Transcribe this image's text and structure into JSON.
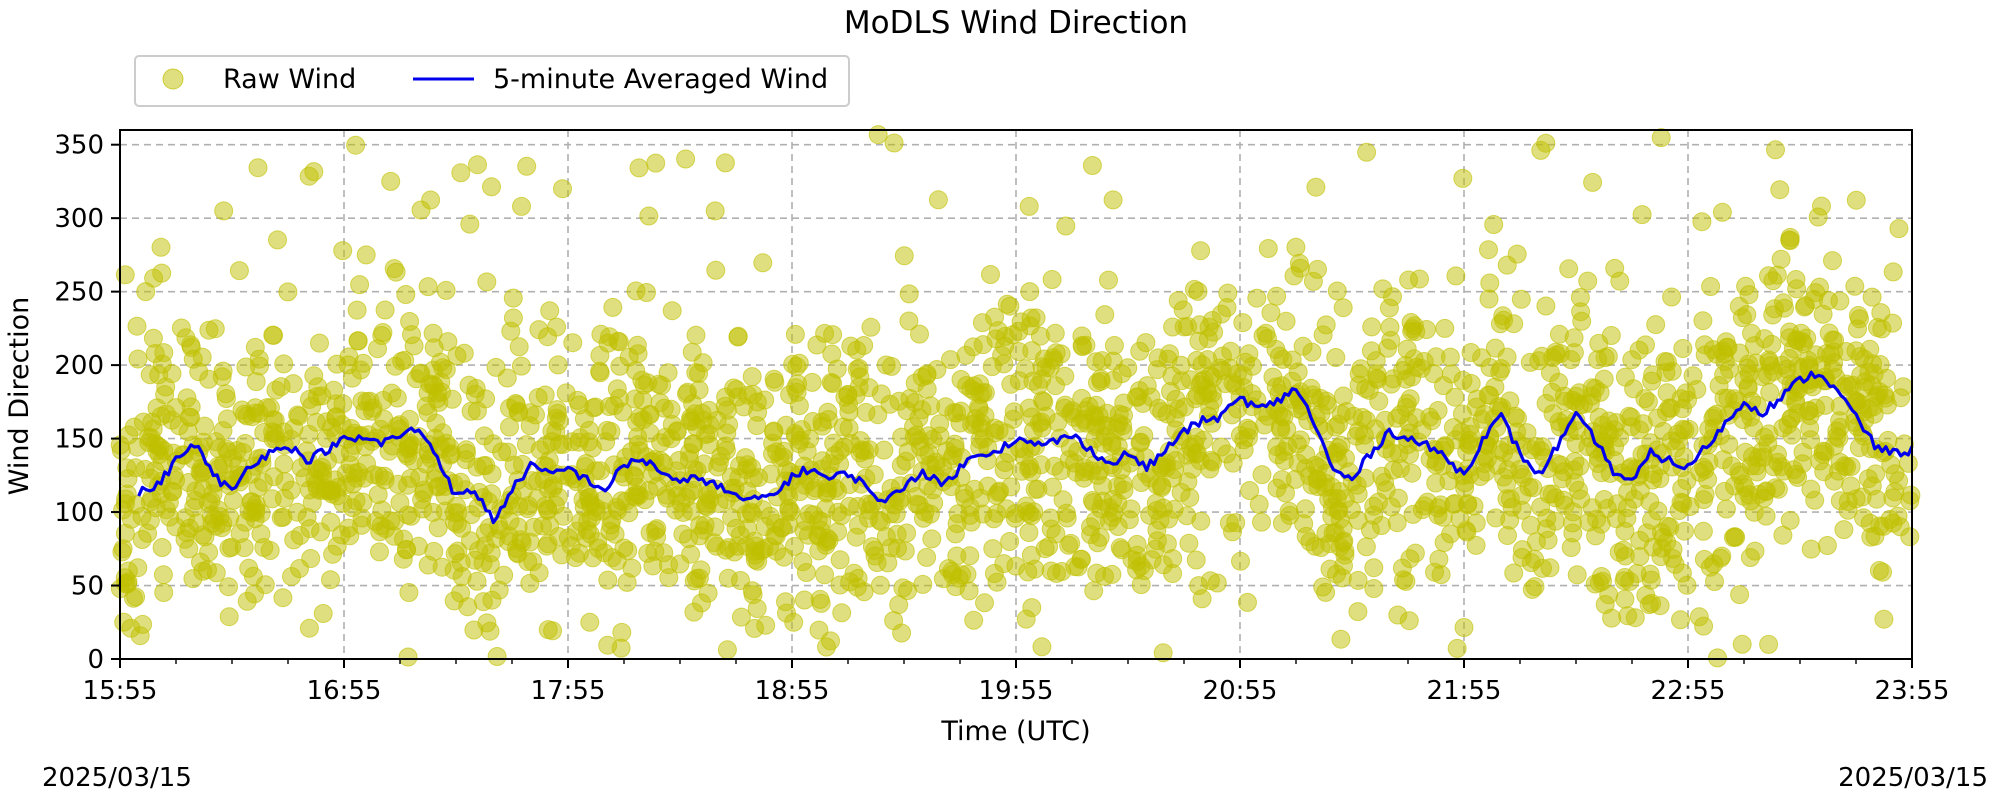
{
  "chart_data": {
    "type": "scatter",
    "title": "MoDLS Wind Direction",
    "xlabel": "Time (UTC)",
    "ylabel": "Wind Direction",
    "x_ticks": [
      "15:55",
      "16:55",
      "17:55",
      "18:55",
      "19:55",
      "20:55",
      "21:55",
      "22:55",
      "23:55"
    ],
    "y_ticks": [
      0,
      50,
      100,
      150,
      200,
      250,
      300,
      350
    ],
    "xlim": [
      "15:55",
      "23:55"
    ],
    "ylim": [
      0,
      360
    ],
    "grid": true,
    "legend_position": "top-left, above plot",
    "date_left": "2025/03/15",
    "date_right": "2025/03/15",
    "colors": {
      "raw": "#bfbf00",
      "averaged": "#0000ee",
      "grid": "#b0b0b0"
    },
    "series": [
      {
        "name": "Raw Wind",
        "kind": "scatter",
        "summary_note": "dense scatter of raw samples spread around the 5-minute average, roughly ±60° with outliers across 0-360"
      },
      {
        "name": "5-minute Averaged Wind",
        "kind": "line",
        "x": [
          "16:00",
          "16:05",
          "16:10",
          "16:15",
          "16:20",
          "16:25",
          "16:30",
          "16:35",
          "16:40",
          "16:45",
          "16:50",
          "16:55",
          "17:00",
          "17:05",
          "17:10",
          "17:15",
          "17:20",
          "17:25",
          "17:30",
          "17:35",
          "17:40",
          "17:45",
          "17:50",
          "17:55",
          "18:00",
          "18:05",
          "18:10",
          "18:15",
          "18:20",
          "18:25",
          "18:30",
          "18:35",
          "18:40",
          "18:45",
          "18:50",
          "18:55",
          "19:00",
          "19:05",
          "19:10",
          "19:15",
          "19:20",
          "19:25",
          "19:30",
          "19:35",
          "19:40",
          "19:45",
          "19:50",
          "19:55",
          "20:00",
          "20:05",
          "20:10",
          "20:15",
          "20:20",
          "20:25",
          "20:30",
          "20:35",
          "20:40",
          "20:45",
          "20:50",
          "20:55",
          "21:00",
          "21:05",
          "21:10",
          "21:15",
          "21:20",
          "21:25",
          "21:30",
          "21:35",
          "21:40",
          "21:45",
          "21:50",
          "21:55",
          "22:00",
          "22:05",
          "22:10",
          "22:15",
          "22:20",
          "22:25",
          "22:30",
          "22:35",
          "22:40",
          "22:45",
          "22:50",
          "22:55",
          "23:00",
          "23:05",
          "23:10",
          "23:15",
          "23:20",
          "23:25",
          "23:30",
          "23:35",
          "23:40",
          "23:45",
          "23:50",
          "23:55"
        ],
        "y": [
          113,
          118,
          135,
          147,
          125,
          114,
          133,
          140,
          146,
          135,
          142,
          149,
          150,
          147,
          152,
          157,
          138,
          110,
          115,
          94,
          115,
          132,
          125,
          130,
          122,
          115,
          132,
          136,
          128,
          119,
          124,
          118,
          110,
          108,
          112,
          124,
          130,
          122,
          127,
          117,
          106,
          118,
          128,
          118,
          130,
          140,
          142,
          150,
          145,
          148,
          152,
          143,
          132,
          140,
          130,
          142,
          155,
          162,
          165,
          178,
          170,
          175,
          185,
          160,
          128,
          122,
          140,
          155,
          150,
          145,
          138,
          125,
          150,
          165,
          140,
          125,
          145,
          165,
          150,
          128,
          120,
          140,
          135,
          130,
          145,
          160,
          175,
          168,
          178,
          190,
          195,
          182,
          165,
          145,
          140,
          142
        ]
      }
    ]
  }
}
